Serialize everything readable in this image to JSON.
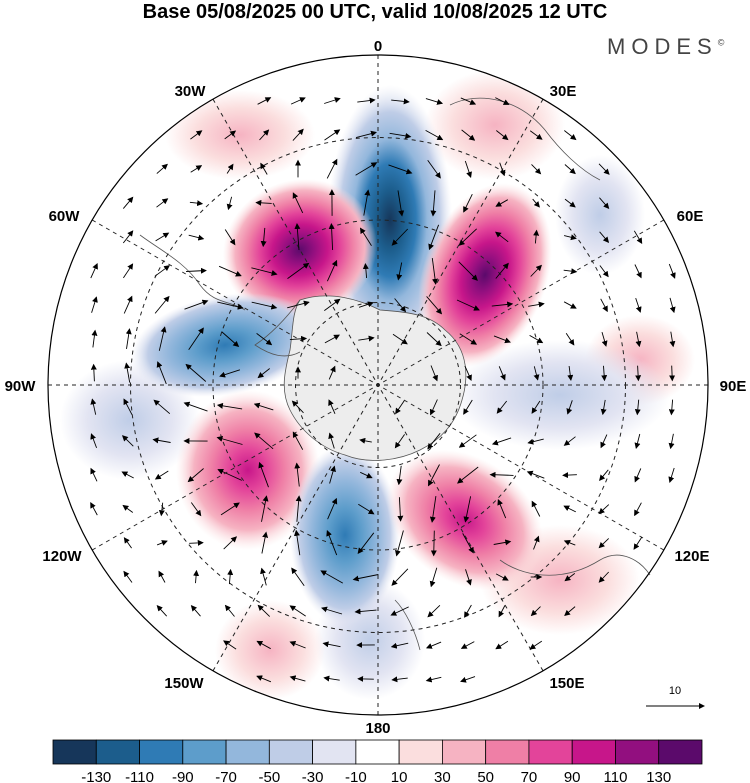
{
  "title": "Base 05/08/2025 00 UTC, valid 10/08/2025 12 UTC",
  "brand": "MODES",
  "brand_mark": "©",
  "longitude_labels": [
    "0",
    "30E",
    "60E",
    "90E",
    "120E",
    "150E",
    "180",
    "150W",
    "120W",
    "90W",
    "60W",
    "30W"
  ],
  "vector_reference": {
    "label": "10",
    "units_value": 10
  },
  "colorbar": {
    "colors": [
      "#16365a",
      "#1c5d8c",
      "#2f7bb5",
      "#5d9dcb",
      "#93b7dc",
      "#bfcde7",
      "#e2e4f2",
      "#ffffff",
      "#fbdede",
      "#f6b3c2",
      "#ef7fa6",
      "#e3449a",
      "#c7168a",
      "#920f7f",
      "#5b0a6b"
    ],
    "tick_labels": [
      "-130",
      "-110",
      "-90",
      "-70",
      "-50",
      "-30",
      "-10",
      "10",
      "30",
      "50",
      "70",
      "90",
      "110",
      "130"
    ]
  },
  "anomaly_centers": [
    {
      "type": "negative",
      "bearing_deg": 3,
      "radius_fraction": 0.55,
      "value_class": "-130"
    },
    {
      "type": "positive",
      "bearing_deg": 38,
      "radius_fraction": 0.47,
      "value_class": "90"
    },
    {
      "type": "positive",
      "bearing_deg": 325,
      "radius_fraction": 0.52,
      "value_class": "130"
    },
    {
      "type": "negative",
      "bearing_deg": 282,
      "radius_fraction": 0.52,
      "value_class": "-50"
    },
    {
      "type": "positive",
      "bearing_deg": 236,
      "radius_fraction": 0.55,
      "value_class": "90"
    },
    {
      "type": "negative",
      "bearing_deg": 188,
      "radius_fraction": 0.47,
      "value_class": "-70"
    },
    {
      "type": "positive",
      "bearing_deg": 139,
      "radius_fraction": 0.5,
      "value_class": "70"
    }
  ]
}
